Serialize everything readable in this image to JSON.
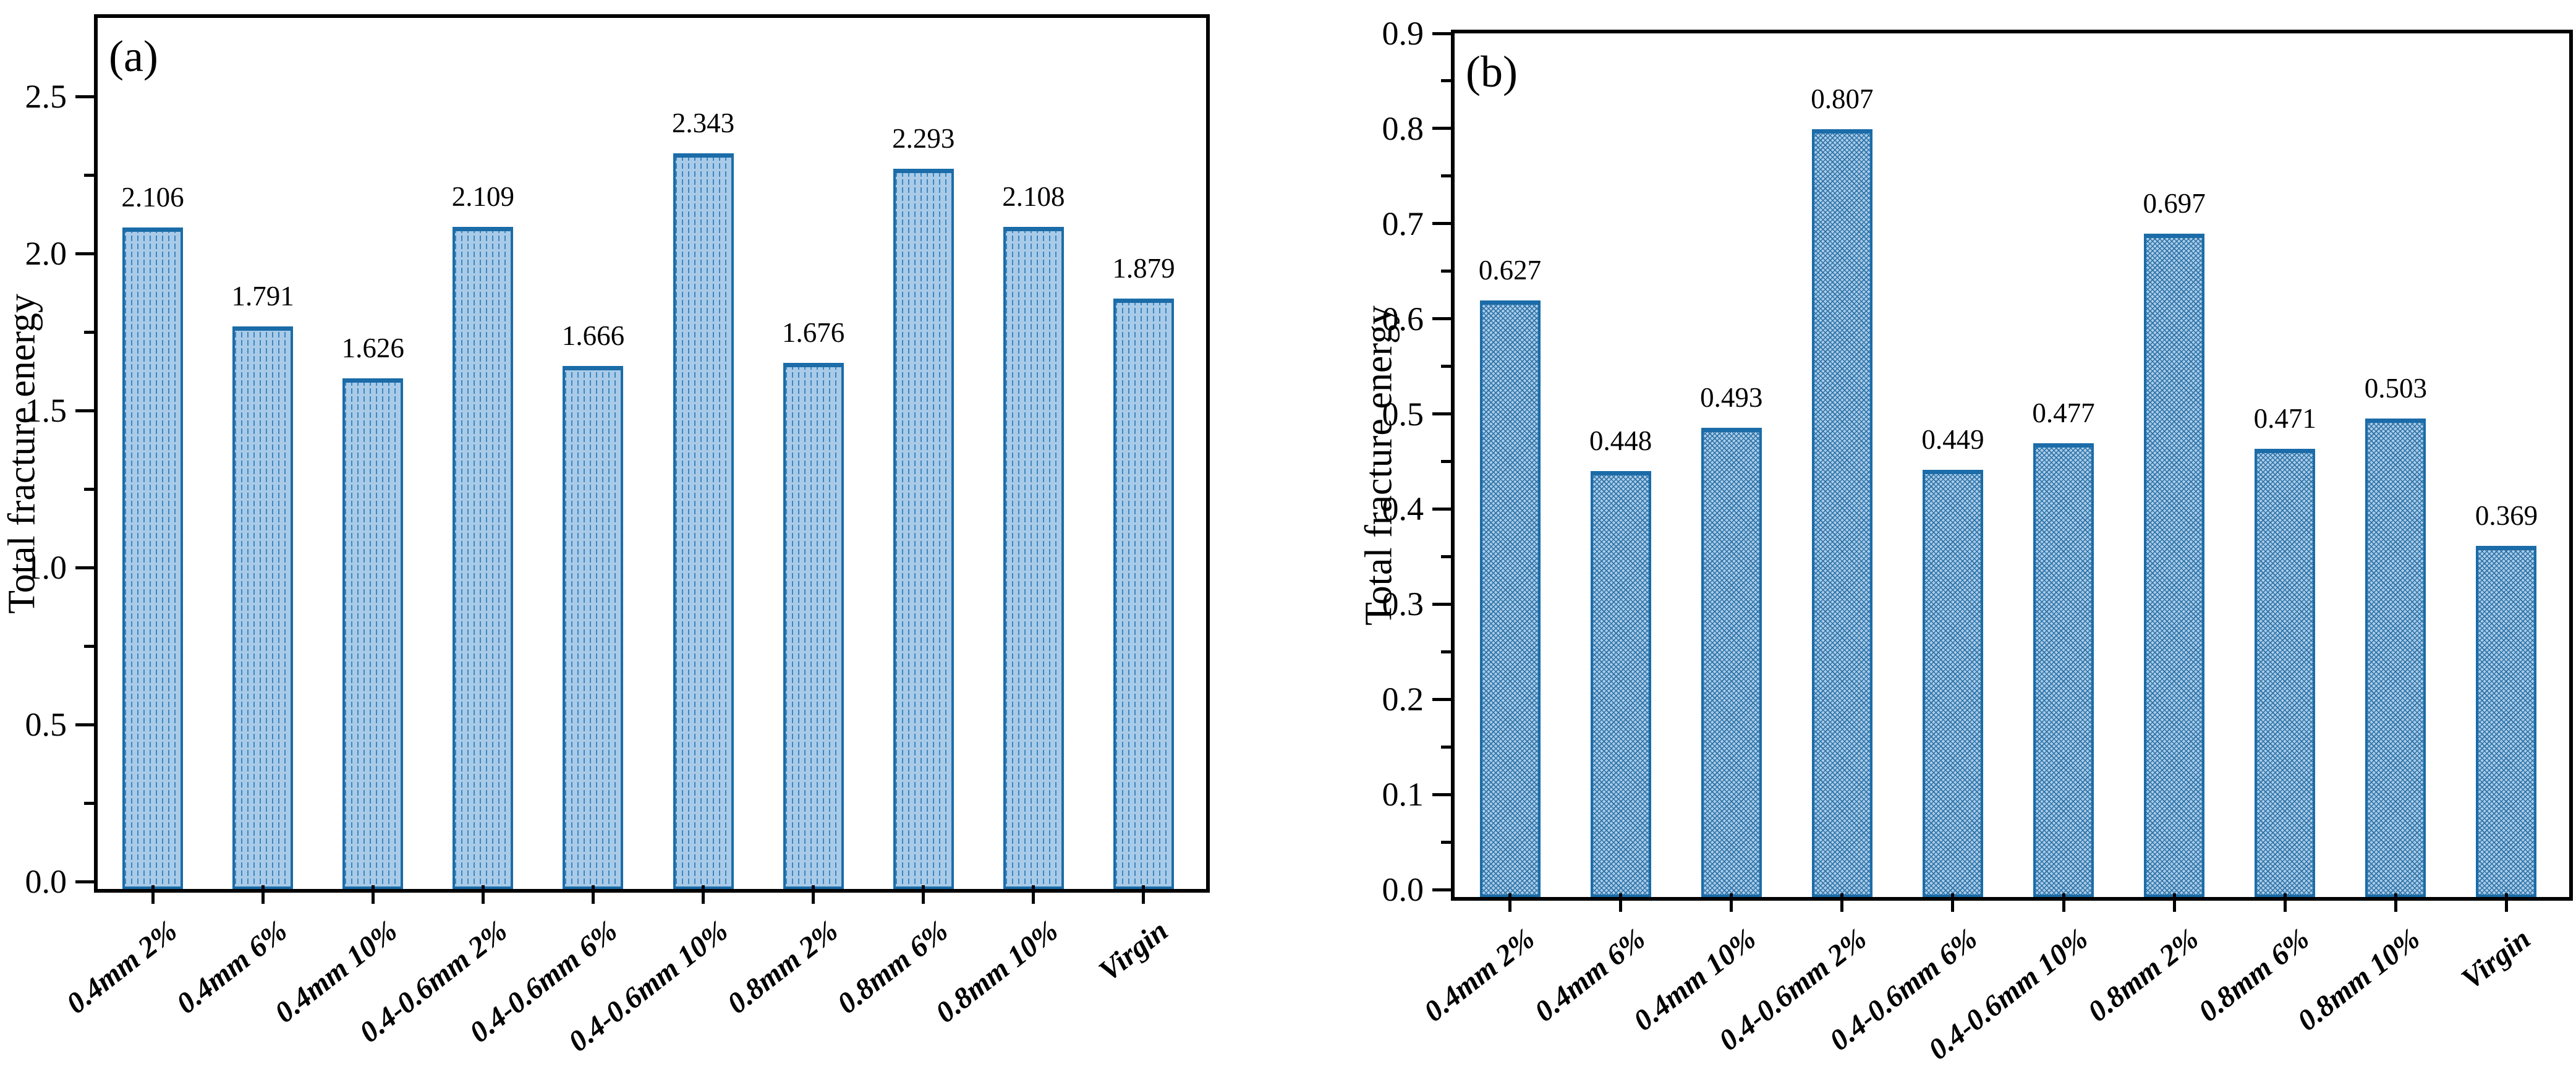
{
  "chart_data": [
    {
      "type": "bar",
      "panel_label": "(a)",
      "ylabel": "Total fracture energy",
      "ylim": [
        0,
        2.75
      ],
      "ytick_values": [
        0.0,
        0.5,
        1.0,
        1.5,
        2.0,
        2.5
      ],
      "yminor_values": [
        0.25,
        0.75,
        1.25,
        1.75,
        2.25
      ],
      "grid": "off",
      "legend": "none",
      "categories": [
        "0.4mm 2%",
        "0.4mm 6%",
        "0.4mm 10%",
        "0.4-0.6mm 2%",
        "0.4-0.6mm 6%",
        "0.4-0.6mm 10%",
        "0.8mm 2%",
        "0.8mm 6%",
        "0.8mm 10%",
        "Virgin"
      ],
      "values": [
        2.106,
        1.791,
        1.626,
        2.109,
        1.666,
        2.343,
        1.676,
        2.293,
        2.108,
        1.879
      ],
      "bar_pattern": "vertical-dashes"
    },
    {
      "type": "bar",
      "panel_label": "(b)",
      "ylabel": "Total fracture energy",
      "ylim": [
        0,
        0.9
      ],
      "ytick_values": [
        0.0,
        0.1,
        0.2,
        0.3,
        0.4,
        0.5,
        0.6,
        0.7,
        0.8,
        0.9
      ],
      "yminor_values": [
        0.05,
        0.15,
        0.25,
        0.35,
        0.45,
        0.55,
        0.65,
        0.75,
        0.85
      ],
      "grid": "off",
      "legend": "none",
      "categories": [
        "0.4mm 2%",
        "0.4mm 6%",
        "0.4mm 10%",
        "0.4-0.6mm 2%",
        "0.4-0.6mm 6%",
        "0.4-0.6mm 10%",
        "0.8mm 2%",
        "0.8mm 6%",
        "0.8mm 10%",
        "Virgin"
      ],
      "values": [
        0.627,
        0.448,
        0.493,
        0.807,
        0.449,
        0.477,
        0.697,
        0.471,
        0.503,
        0.369
      ],
      "bar_pattern": "zigzag-crosshatch"
    }
  ],
  "colors": {
    "axis": "#000000",
    "bar_fill": "#a9cbe8",
    "bar_edge": "#1b6ca8",
    "hatch_line": "#3c86c0",
    "hatch_line_b": "#2b71a6"
  }
}
